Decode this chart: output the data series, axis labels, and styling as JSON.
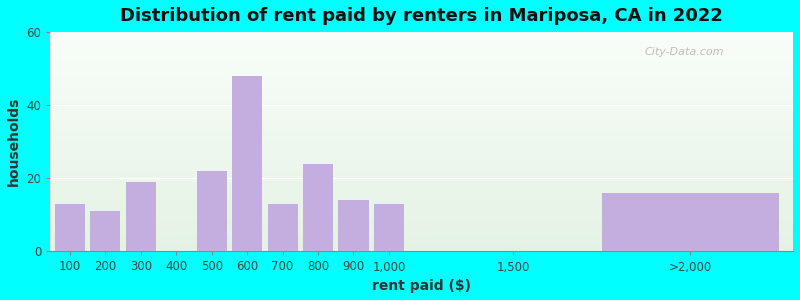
{
  "title": "Distribution of rent paid by renters in Mariposa, CA in 2022",
  "xlabel": "rent paid ($)",
  "ylabel": "households",
  "bar_labels": [
    "100",
    "200",
    "300",
    "400",
    "500",
    "600",
    "700",
    "800",
    "900",
    "1,000",
    "1,500",
    ">2,000"
  ],
  "bar_values": [
    13,
    11,
    19,
    0,
    22,
    48,
    13,
    24,
    14,
    13,
    16
  ],
  "bar_x": [
    0,
    1,
    2,
    3,
    4,
    5,
    6,
    7,
    8,
    9,
    17.5
  ],
  "bar_widths": [
    0.85,
    0.85,
    0.85,
    0.85,
    0.85,
    0.85,
    0.85,
    0.85,
    0.85,
    0.85,
    5.0
  ],
  "tick_x": [
    0,
    1,
    2,
    3,
    4,
    5,
    6,
    7,
    8,
    9,
    12.5,
    17.5
  ],
  "tick_labels": [
    "100",
    "200",
    "300",
    "400",
    "500",
    "600",
    "700",
    "800",
    "900",
    "1,000",
    "1,500",
    ">2,000"
  ],
  "bar_color": "#c4aee0",
  "ylim": [
    0,
    60
  ],
  "yticks": [
    0,
    20,
    40,
    60
  ],
  "xlim": [
    -0.55,
    20.4
  ],
  "outer_background": "#00ffff",
  "bg_top_color": "#f0faf0",
  "bg_bottom_color": "#e4f2e4",
  "title_fontsize": 13,
  "axis_label_fontsize": 10,
  "tick_fontsize": 8.5,
  "watermark_text": "City-Data.com"
}
